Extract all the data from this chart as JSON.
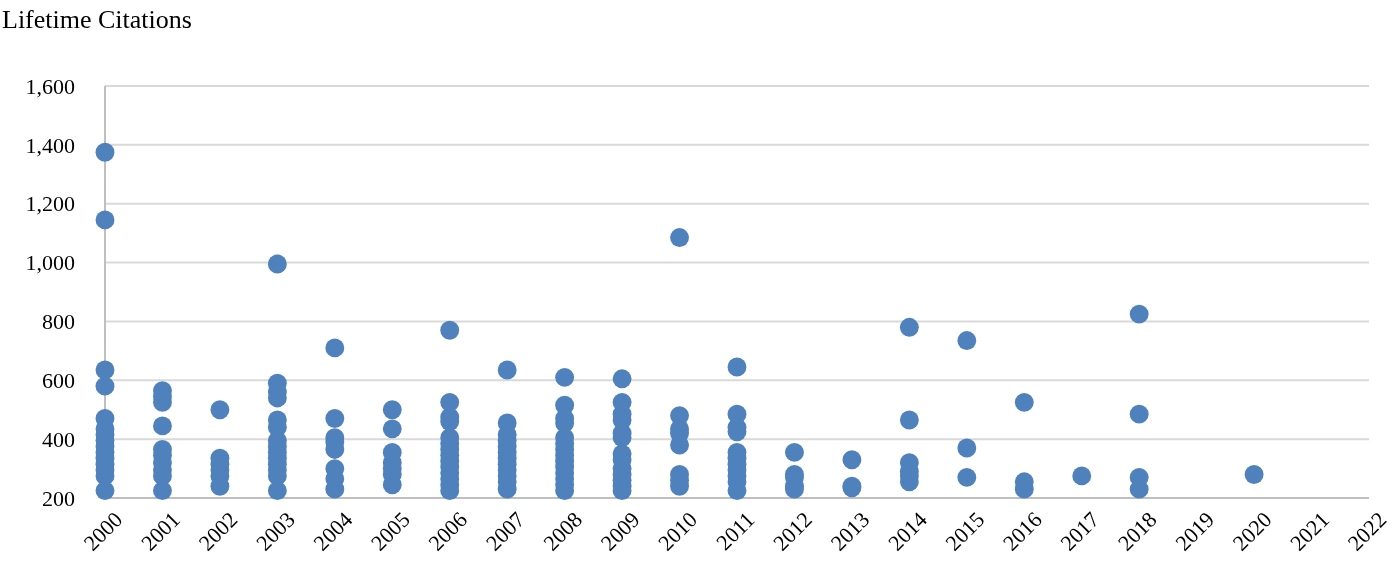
{
  "chart_data": {
    "type": "scatter",
    "ylabel": "Lifetime Citations",
    "xlim": [
      2000,
      2022
    ],
    "xticks": [
      2000,
      2001,
      2002,
      2003,
      2004,
      2005,
      2006,
      2007,
      2008,
      2009,
      2010,
      2011,
      2012,
      2013,
      2014,
      2015,
      2016,
      2017,
      2018,
      2019,
      2020,
      2021,
      2022
    ],
    "ylim": [
      200,
      1600
    ],
    "yticks": [
      {
        "value": 200,
        "label": "200"
      },
      {
        "value": 400,
        "label": "400"
      },
      {
        "value": 600,
        "label": "600"
      },
      {
        "value": 800,
        "label": "800"
      },
      {
        "value": 1000,
        "label": "1,000"
      },
      {
        "value": 1200,
        "label": "1,200"
      },
      {
        "value": 1400,
        "label": "1,400"
      },
      {
        "value": 1600,
        "label": "1,600"
      }
    ],
    "grid": "y",
    "marker": "circle",
    "series": [
      {
        "color": "#4f81bd",
        "x": [
          2000,
          2000,
          2000,
          2000,
          2000,
          2000,
          2000,
          2000,
          2000,
          2000,
          2000,
          2000,
          2000,
          2000,
          2000,
          2001,
          2001,
          2001,
          2001,
          2001,
          2001,
          2001,
          2001,
          2001,
          2001,
          2002,
          2002,
          2002,
          2002,
          2002,
          2002,
          2003,
          2003,
          2003,
          2003,
          2003,
          2003,
          2003,
          2003,
          2003,
          2003,
          2003,
          2003,
          2003,
          2003,
          2004,
          2004,
          2004,
          2004,
          2004,
          2004,
          2004,
          2004,
          2005,
          2005,
          2005,
          2005,
          2005,
          2005,
          2005,
          2006,
          2006,
          2006,
          2006,
          2006,
          2006,
          2006,
          2006,
          2006,
          2006,
          2006,
          2006,
          2006,
          2006,
          2007,
          2007,
          2007,
          2007,
          2007,
          2007,
          2007,
          2007,
          2007,
          2007,
          2007,
          2007,
          2008,
          2008,
          2008,
          2008,
          2008,
          2008,
          2008,
          2008,
          2008,
          2008,
          2008,
          2008,
          2008,
          2008,
          2009,
          2009,
          2009,
          2009,
          2009,
          2009,
          2009,
          2009,
          2009,
          2009,
          2009,
          2009,
          2009,
          2010,
          2010,
          2010,
          2010,
          2010,
          2010,
          2010,
          2010,
          2011,
          2011,
          2011,
          2011,
          2011,
          2011,
          2011,
          2011,
          2011,
          2011,
          2011,
          2012,
          2012,
          2012,
          2012,
          2012,
          2013,
          2013,
          2013,
          2014,
          2014,
          2014,
          2014,
          2014,
          2014,
          2015,
          2015,
          2015,
          2016,
          2016,
          2016,
          2017,
          2018,
          2018,
          2018,
          2018,
          2020
        ],
        "values": [
          1375,
          1145,
          635,
          580,
          470,
          435,
          415,
          395,
          375,
          355,
          335,
          315,
          295,
          275,
          225,
          565,
          545,
          525,
          445,
          365,
          345,
          320,
          295,
          275,
          225,
          500,
          335,
          315,
          295,
          275,
          240,
          995,
          590,
          560,
          540,
          465,
          440,
          395,
          375,
          355,
          335,
          315,
          295,
          275,
          225,
          710,
          470,
          405,
          390,
          365,
          300,
          265,
          230,
          500,
          435,
          355,
          320,
          300,
          280,
          245,
          770,
          525,
          475,
          460,
          405,
          385,
          365,
          345,
          325,
          305,
          285,
          265,
          245,
          225,
          635,
          455,
          415,
          395,
          375,
          355,
          335,
          315,
          295,
          275,
          255,
          230,
          610,
          515,
          470,
          455,
          405,
          385,
          365,
          345,
          325,
          305,
          285,
          265,
          245,
          225,
          605,
          525,
          485,
          465,
          420,
          405,
          350,
          330,
          300,
          280,
          260,
          240,
          225,
          1085,
          480,
          435,
          420,
          380,
          280,
          260,
          240,
          645,
          485,
          440,
          425,
          355,
          335,
          315,
          295,
          275,
          255,
          225,
          355,
          280,
          270,
          240,
          230,
          330,
          240,
          235,
          780,
          465,
          320,
          290,
          275,
          255,
          735,
          370,
          270,
          525,
          255,
          230,
          275,
          825,
          485,
          270,
          230,
          280
        ]
      }
    ]
  }
}
